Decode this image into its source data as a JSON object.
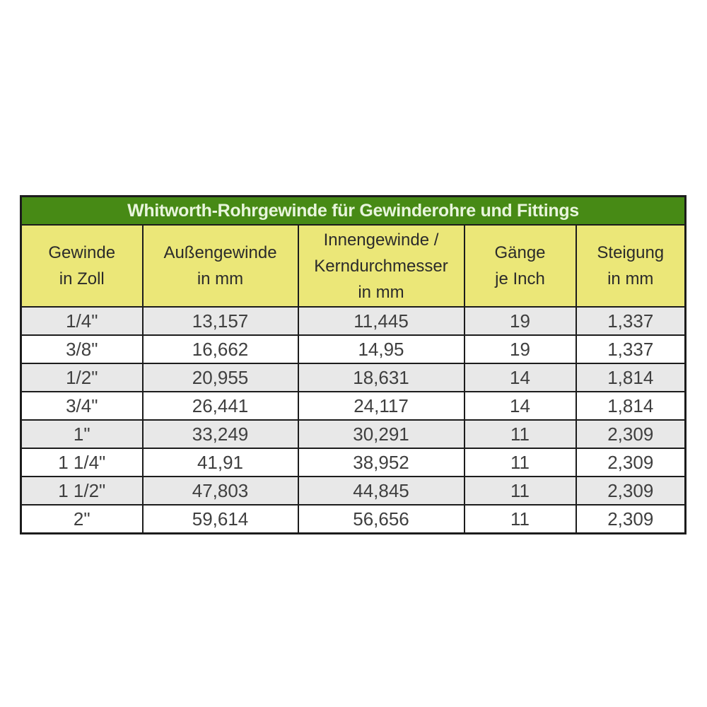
{
  "table": {
    "title": "Whitworth-Rohrgewinde für Gewinderohre und Fittings",
    "columns": [
      {
        "label": "Gewinde\nin Zoll"
      },
      {
        "label": "Außengewinde\nin mm"
      },
      {
        "label": "Innengewinde /\nKerndurchmesser\nin mm"
      },
      {
        "label": "Gänge\nje Inch"
      },
      {
        "label": "Steigung\nin mm"
      }
    ],
    "rows": [
      [
        "1/4\"",
        "13,157",
        "11,445",
        "19",
        "1,337"
      ],
      [
        "3/8\"",
        "16,662",
        "14,95",
        "19",
        "1,337"
      ],
      [
        "1/2\"",
        "20,955",
        "18,631",
        "14",
        "1,814"
      ],
      [
        "3/4\"",
        "26,441",
        "24,117",
        "14",
        "1,814"
      ],
      [
        "1\"",
        "33,249",
        "30,291",
        "11",
        "2,309"
      ],
      [
        "1 1/4\"",
        "41,91",
        "38,952",
        "11",
        "2,309"
      ],
      [
        "1 1/2\"",
        "47,803",
        "44,845",
        "11",
        "2,309"
      ],
      [
        "2\"",
        "59,614",
        "56,656",
        "11",
        "2,309"
      ]
    ]
  },
  "colors": {
    "green": "#478a15",
    "yellow": "#ebe778",
    "title_text": "#e8f5dc",
    "header_text": "#2b2b2b",
    "data_text": "#3f3f3f",
    "row_odd": "#e8e8e8",
    "row_even": "#ffffff",
    "border": "#1c1c1c"
  }
}
